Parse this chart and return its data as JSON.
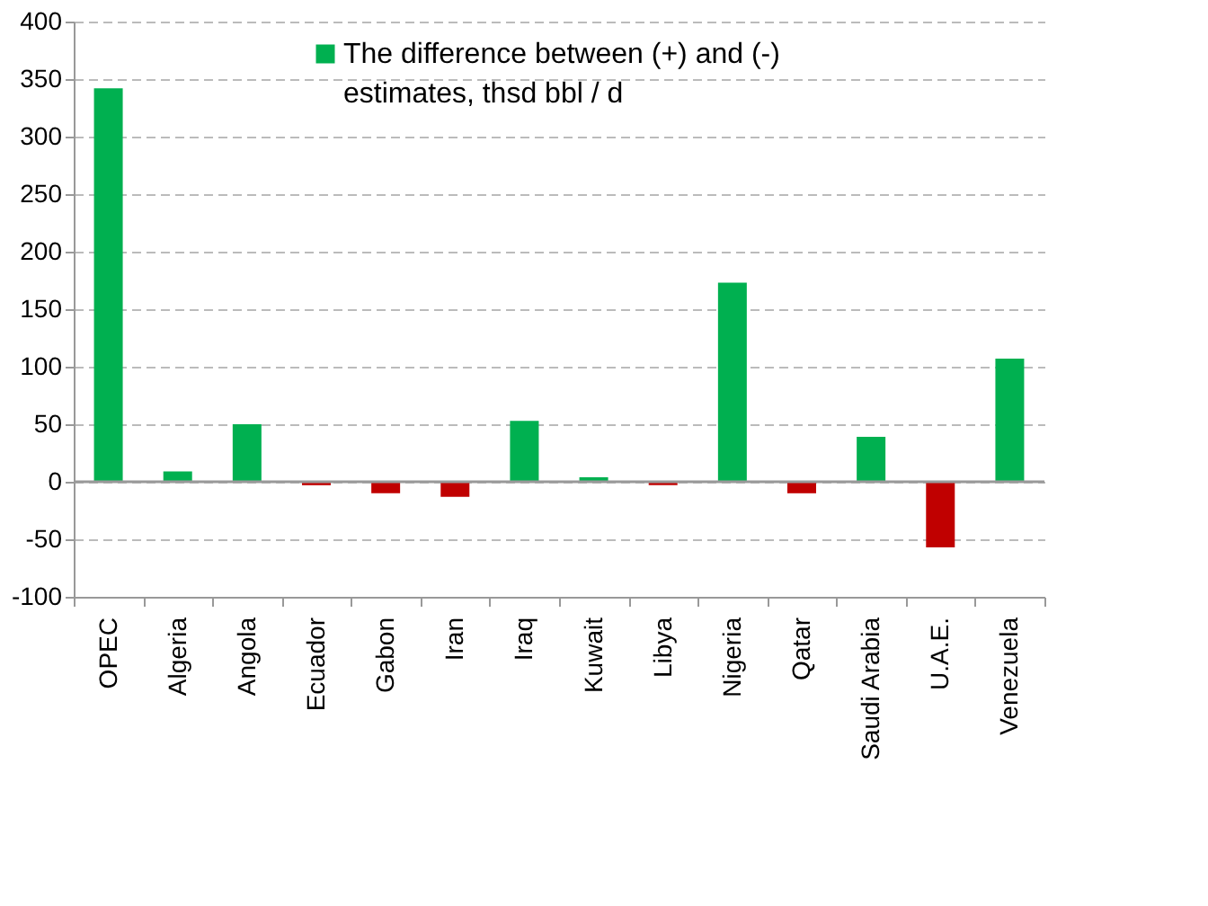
{
  "chart_data": {
    "type": "bar",
    "categories": [
      "OPEC",
      "Algeria",
      "Angola",
      "Ecuador",
      "Gabon",
      "Iran",
      "Iraq",
      "Kuwait",
      "Libya",
      "Nigeria",
      "Qatar",
      "Saudi Arabia",
      "U.A.E.",
      "Venezuela"
    ],
    "series": [
      {
        "name": "The difference between (+) and (-) estimates, thsd bbl / d",
        "color": "#00b050",
        "values": [
          342,
          9,
          50,
          -3,
          -10,
          -13,
          53,
          4,
          -3,
          173,
          -10,
          39,
          -57,
          107
        ],
        "colors": [
          "#00b050",
          "#00b050",
          "#00b050",
          "#c00000",
          "#c00000",
          "#c00000",
          "#00b050",
          "#00b050",
          "#c00000",
          "#00b050",
          "#c00000",
          "#00b050",
          "#c00000",
          "#00b050"
        ]
      }
    ],
    "ylim": [
      -100,
      400
    ],
    "yticks": [
      -100,
      -50,
      0,
      50,
      100,
      150,
      200,
      250,
      300,
      350,
      400
    ],
    "grid": "y",
    "legend": "top right"
  }
}
